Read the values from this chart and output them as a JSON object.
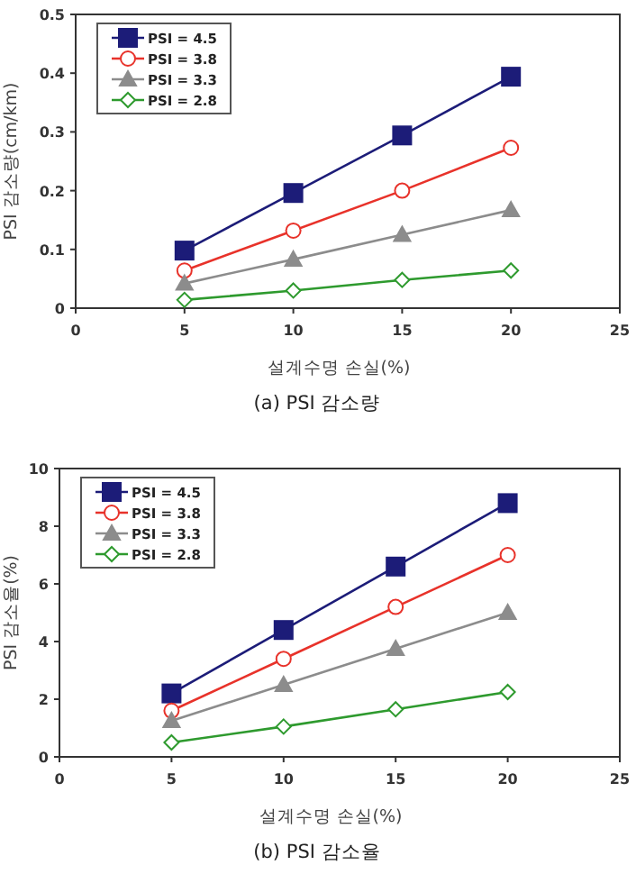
{
  "chart_data": [
    {
      "type": "line",
      "title": "(a) PSI 감소량",
      "xlabel": "설계수명 손실(%)",
      "ylabel": "PSI 감소량(cm/km)",
      "x": [
        5,
        10,
        15,
        20
      ],
      "xlim": [
        0,
        25
      ],
      "xticks": [
        0,
        5,
        10,
        15,
        20,
        25
      ],
      "ylim": [
        0,
        0.5
      ],
      "yticks": [
        0,
        0.1,
        0.2,
        0.3,
        0.4,
        0.5
      ],
      "legend": "top left",
      "grid": false,
      "series": [
        {
          "name": "PSI = 4.5",
          "color": "#1c1c78",
          "marker": "square",
          "values": [
            0.098,
            0.196,
            0.294,
            0.394
          ]
        },
        {
          "name": "PSI = 3.8",
          "color": "#e8322a",
          "marker": "circle",
          "values": [
            0.064,
            0.132,
            0.2,
            0.273
          ]
        },
        {
          "name": "PSI = 3.3",
          "color": "#8c8c8c",
          "marker": "triangle",
          "values": [
            0.042,
            0.083,
            0.125,
            0.167
          ]
        },
        {
          "name": "PSI = 2.8",
          "color": "#2e9a2e",
          "marker": "diamond",
          "values": [
            0.014,
            0.03,
            0.048,
            0.064
          ]
        }
      ]
    },
    {
      "type": "line",
      "title": "(b) PSI 감소율",
      "xlabel": "설계수명 손실(%)",
      "ylabel": "PSI 감소율(%)",
      "x": [
        5,
        10,
        15,
        20
      ],
      "xlim": [
        0,
        25
      ],
      "xticks": [
        0,
        5,
        10,
        15,
        20,
        25
      ],
      "ylim": [
        0,
        10
      ],
      "yticks": [
        0,
        2,
        4,
        6,
        8,
        10
      ],
      "legend": "top left",
      "grid": false,
      "series": [
        {
          "name": "PSI = 4.5",
          "color": "#1c1c78",
          "marker": "square",
          "values": [
            2.2,
            4.4,
            6.6,
            8.8
          ]
        },
        {
          "name": "PSI = 3.8",
          "color": "#e8322a",
          "marker": "circle",
          "values": [
            1.6,
            3.4,
            5.2,
            7.0
          ]
        },
        {
          "name": "PSI = 3.3",
          "color": "#8c8c8c",
          "marker": "triangle",
          "values": [
            1.25,
            2.5,
            3.75,
            5.0
          ]
        },
        {
          "name": "PSI = 2.8",
          "color": "#2e9a2e",
          "marker": "diamond",
          "values": [
            0.5,
            1.05,
            1.65,
            2.25
          ]
        }
      ]
    }
  ]
}
